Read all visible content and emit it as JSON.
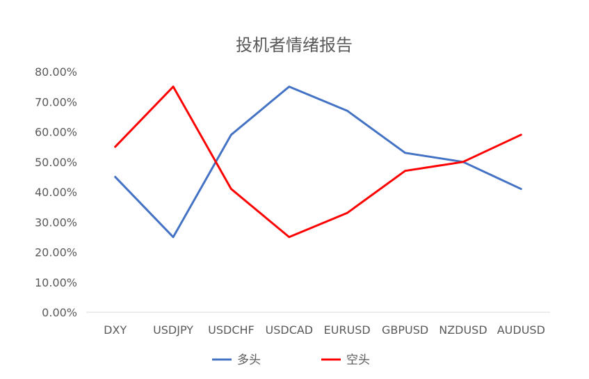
{
  "chart_data": {
    "type": "line",
    "title": "投机者情绪报告",
    "xlabel": "",
    "ylabel": "",
    "categories": [
      "DXY",
      "USDJPY",
      "USDCHF",
      "USDCAD",
      "EURUSD",
      "GBPUSD",
      "NZDUSD",
      "AUDUSD"
    ],
    "y_ticks": [
      "0.00%",
      "10.00%",
      "20.00%",
      "30.00%",
      "40.00%",
      "50.00%",
      "60.00%",
      "70.00%",
      "80.00%"
    ],
    "ylim": [
      0,
      80
    ],
    "grid": false,
    "legend_position": "bottom",
    "series": [
      {
        "name": "多头",
        "color": "#4472C4",
        "values": [
          45,
          25,
          59,
          75,
          67,
          53,
          50,
          41
        ]
      },
      {
        "name": "空头",
        "color": "#FF0000",
        "values": [
          55,
          75,
          41,
          25,
          33,
          47,
          50,
          59
        ]
      }
    ]
  }
}
